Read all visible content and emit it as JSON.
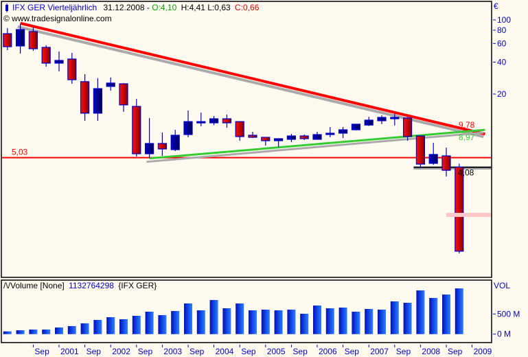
{
  "header": {
    "symbol": "IFX GER Vierteljährlich",
    "date": "31.12.2008 - ",
    "open": "O:4,10",
    "high_low": "H:4,41 L:0,63",
    "close": "C:0,66",
    "copyright": "© www.tradesignalonline.com"
  },
  "volume_header": {
    "name": "/\\/Volume [None]",
    "value": "1132764298",
    "symbol": "{IFX GER}"
  },
  "colors": {
    "background": "#fffaef",
    "bull": "#0000cc",
    "bear": "#e00000",
    "trend_down": "#ff0000",
    "trend_up": "#33cc33",
    "support": "#ff0000",
    "volume": "#0a3ee0"
  },
  "chart_data": [
    {
      "type": "candlestick",
      "currency_label": "€",
      "y_scale": "log",
      "y_ticks": [
        {
          "value": 100,
          "label": "100"
        },
        {
          "value": 80,
          "label": "80"
        },
        {
          "value": 60,
          "label": "60"
        },
        {
          "value": 40,
          "label": "40"
        },
        {
          "value": 20,
          "label": "20"
        }
      ],
      "x_ticks": [
        {
          "date": "2000-07",
          "label": "Sep"
        },
        {
          "date": "2001-01",
          "label": "2001"
        },
        {
          "date": "2001-07",
          "label": "Sep"
        },
        {
          "date": "2002-01",
          "label": "2002"
        },
        {
          "date": "2002-07",
          "label": "Sep"
        },
        {
          "date": "2003-01",
          "label": "2003"
        },
        {
          "date": "2003-07",
          "label": "Sep"
        },
        {
          "date": "2004-01",
          "label": "2004"
        },
        {
          "date": "2004-07",
          "label": "Sep"
        },
        {
          "date": "2005-01",
          "label": "2005"
        },
        {
          "date": "2005-07",
          "label": "Sep"
        },
        {
          "date": "2006-01",
          "label": "2006"
        },
        {
          "date": "2006-07",
          "label": "Sep"
        },
        {
          "date": "2007-01",
          "label": "2007"
        },
        {
          "date": "2007-07",
          "label": "Sep"
        },
        {
          "date": "2008-01",
          "label": "2008"
        },
        {
          "date": "2008-07",
          "label": "Sep"
        },
        {
          "date": "2009-01",
          "label": "2009"
        }
      ],
      "candles": [
        {
          "period": "2000-Q1",
          "o": 74.2,
          "h": 83.6,
          "l": 51.9,
          "c": 55.9
        },
        {
          "period": "2000-Q2",
          "o": 56.8,
          "h": 91.5,
          "l": 48.2,
          "c": 81.2
        },
        {
          "period": "2000-Q3",
          "o": 77.6,
          "h": 84.9,
          "l": 51.1,
          "c": 53.5
        },
        {
          "period": "2000-Q4",
          "o": 55.1,
          "h": 57.6,
          "l": 36.3,
          "c": 39.1
        },
        {
          "period": "2001-Q1",
          "o": 39.1,
          "h": 50.4,
          "l": 32.7,
          "c": 41.5
        },
        {
          "period": "2001-Q2",
          "o": 42.8,
          "h": 48.9,
          "l": 25.0,
          "c": 27.3
        },
        {
          "period": "2001-Q3",
          "o": 26.2,
          "h": 30.8,
          "l": 11.2,
          "c": 13.2
        },
        {
          "period": "2001-Q4",
          "o": 13.2,
          "h": 28.2,
          "l": 11.2,
          "c": 22.5
        },
        {
          "period": "2002-Q1",
          "o": 23.6,
          "h": 28.6,
          "l": 21.5,
          "c": 25.4
        },
        {
          "period": "2002-Q2",
          "o": 25.0,
          "h": 25.4,
          "l": 13.6,
          "c": 15.8
        },
        {
          "period": "2002-Q3",
          "o": 15.3,
          "h": 18.0,
          "l": 5.15,
          "c": 5.47
        },
        {
          "period": "2002-Q4",
          "o": 5.47,
          "h": 11.9,
          "l": 5.0,
          "c": 6.84
        },
        {
          "period": "2003-Q1",
          "o": 6.84,
          "h": 8.68,
          "l": 5.23,
          "c": 6.07
        },
        {
          "period": "2003-Q2",
          "o": 5.98,
          "h": 9.21,
          "l": 5.8,
          "c": 8.18
        },
        {
          "period": "2003-Q3",
          "o": 8.3,
          "h": 13.98,
          "l": 7.82,
          "c": 11.0
        },
        {
          "period": "2003-Q4",
          "o": 10.7,
          "h": 13.4,
          "l": 9.93,
          "c": 11.0
        },
        {
          "period": "2004-Q1",
          "o": 10.7,
          "h": 12.4,
          "l": 10.2,
          "c": 11.7
        },
        {
          "period": "2004-Q2",
          "o": 11.7,
          "h": 12.8,
          "l": 9.63,
          "c": 10.7
        },
        {
          "period": "2004-Q3",
          "o": 11.0,
          "h": 11.0,
          "l": 7.26,
          "c": 7.94
        },
        {
          "period": "2004-Q4",
          "o": 8.18,
          "h": 8.81,
          "l": 7.7,
          "c": 7.82
        },
        {
          "period": "2005-Q1",
          "o": 7.82,
          "h": 7.82,
          "l": 6.54,
          "c": 7.26
        },
        {
          "period": "2005-Q2",
          "o": 7.26,
          "h": 7.59,
          "l": 6.35,
          "c": 7.59
        },
        {
          "period": "2005-Q3",
          "o": 7.48,
          "h": 8.42,
          "l": 7.05,
          "c": 8.06
        },
        {
          "period": "2005-Q4",
          "o": 8.06,
          "h": 8.3,
          "l": 7.37,
          "c": 7.59
        },
        {
          "period": "2006-Q1",
          "o": 7.48,
          "h": 8.81,
          "l": 7.48,
          "c": 8.3
        },
        {
          "period": "2006-Q2",
          "o": 8.3,
          "h": 9.78,
          "l": 7.82,
          "c": 8.55
        },
        {
          "period": "2006-Q3",
          "o": 8.55,
          "h": 9.78,
          "l": 7.7,
          "c": 9.21
        },
        {
          "period": "2006-Q4",
          "o": 9.21,
          "h": 10.4,
          "l": 9.08,
          "c": 10.4
        },
        {
          "period": "2007-Q1",
          "o": 10.2,
          "h": 12.2,
          "l": 10.0,
          "c": 11.35
        },
        {
          "period": "2007-Q2",
          "o": 11.2,
          "h": 12.6,
          "l": 10.4,
          "c": 12.05
        },
        {
          "period": "2007-Q3",
          "o": 11.7,
          "h": 13.0,
          "l": 10.1,
          "c": 12.05
        },
        {
          "period": "2007-Q4",
          "o": 11.9,
          "h": 12.2,
          "l": 7.26,
          "c": 7.94
        },
        {
          "period": "2008-Q1",
          "o": 8.06,
          "h": 8.06,
          "l": 4.0,
          "c": 4.37
        },
        {
          "period": "2008-Q2",
          "o": 4.44,
          "h": 6.94,
          "l": 4.31,
          "c": 5.39
        },
        {
          "period": "2008-Q3",
          "o": 5.23,
          "h": 6.25,
          "l": 3.34,
          "c": 3.82
        },
        {
          "period": "2008-Q4",
          "o": 4.1,
          "h": 4.41,
          "l": 0.63,
          "c": 0.66
        }
      ],
      "trendlines": [
        {
          "kind": "resistance",
          "color": "#ff0000",
          "start": {
            "period": "2000-Q2",
            "price": 93
          },
          "end": {
            "period": "2009-Q2",
            "price": 8.4
          },
          "label": "9,78"
        },
        {
          "kind": "support",
          "color": "#33cc33",
          "start": {
            "period": "2002-Q4",
            "price": 4.95
          },
          "end": {
            "period": "2009-Q2",
            "price": 9.2
          },
          "label": "8,97"
        }
      ],
      "horizontal_lines": [
        {
          "price": 5.03,
          "label": "5,03",
          "color": "#ff0000",
          "from_period": "2000-Q1"
        },
        {
          "price": 4.08,
          "label": "4,08",
          "color": "#000000",
          "from_period": "2008-Q1"
        }
      ]
    },
    {
      "type": "bar",
      "title": "VOL",
      "unit": "M",
      "y_ticks": [
        {
          "value": 500,
          "label": "500 M"
        },
        {
          "value": 0,
          "label": "0 M"
        }
      ],
      "values_millions": [
        68,
        97,
        114,
        114,
        165,
        199,
        267,
        352,
        420,
        369,
        454,
        556,
        471,
        573,
        760,
        590,
        845,
        641,
        760,
        590,
        607,
        590,
        607,
        505,
        709,
        641,
        658,
        556,
        624,
        607,
        811,
        777,
        1083,
        896,
        981,
        1133
      ]
    }
  ]
}
